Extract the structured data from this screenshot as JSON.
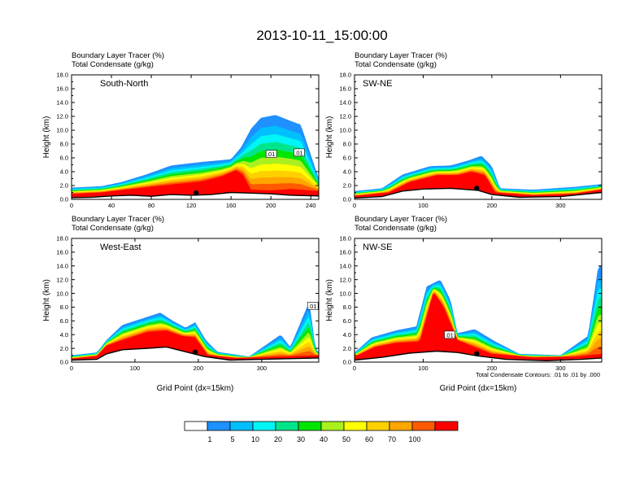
{
  "title": "2013-10-11_15:00:00",
  "panel_header": {
    "line1": "Boundary Layer Tracer   (%)",
    "line2": "Total Condensate   (g/kg)"
  },
  "ylabel": "Height (km)",
  "xlabel": "Grid Point (dx=15km)",
  "contour_note": "Total Condensate Contours: .01 to .01 by .000",
  "colorbar": {
    "labels": [
      "1",
      "5",
      "10",
      "20",
      "30",
      "40",
      "50",
      "60",
      "70",
      "100"
    ],
    "colors": [
      "#ffffff",
      "#1e90ff",
      "#00bfff",
      "#00f5f5",
      "#00e58c",
      "#00e600",
      "#aaf01e",
      "#ffff00",
      "#ffd000",
      "#ffa500",
      "#ff5a00",
      "#ff0000"
    ]
  },
  "chart_data": [
    {
      "type": "heatmap",
      "name": "South-North",
      "xticks": [
        "0",
        "40",
        "80",
        "120",
        "160",
        "200",
        "240"
      ],
      "xlim": [
        0,
        248
      ],
      "yticks": [
        "0.0",
        "2.0",
        "4.0",
        "6.0",
        "8.0",
        "10.0",
        "12.0",
        "14.0",
        "16.0",
        "18.0"
      ],
      "ylim": [
        0,
        18
      ],
      "contour_labels": [
        ".01",
        ".01"
      ],
      "marker_x": 125,
      "terrain": [
        [
          0,
          0.25
        ],
        [
          20,
          0.3
        ],
        [
          40,
          0.5
        ],
        [
          60,
          0.6
        ],
        [
          80,
          0.45
        ],
        [
          100,
          0.7
        ],
        [
          120,
          0.6
        ],
        [
          140,
          0.7
        ],
        [
          160,
          1.0
        ],
        [
          180,
          0.9
        ],
        [
          200,
          0.8
        ],
        [
          220,
          0.6
        ],
        [
          248,
          0.5
        ]
      ],
      "top_tracer_100": [
        [
          0,
          0.8
        ],
        [
          30,
          1.0
        ],
        [
          60,
          1.5
        ],
        [
          90,
          2.0
        ],
        [
          110,
          2.3
        ],
        [
          130,
          2.6
        ],
        [
          150,
          3.3
        ],
        [
          165,
          4.2
        ],
        [
          172,
          3.6
        ],
        [
          180,
          1.4
        ],
        [
          200,
          1.3
        ],
        [
          220,
          1.5
        ],
        [
          248,
          1.2
        ]
      ],
      "top_tracer_1": [
        [
          0,
          1.7
        ],
        [
          30,
          1.9
        ],
        [
          50,
          2.5
        ],
        [
          75,
          3.6
        ],
        [
          100,
          4.9
        ],
        [
          130,
          5.4
        ],
        [
          160,
          5.8
        ],
        [
          170,
          7.5
        ],
        [
          180,
          10.2
        ],
        [
          190,
          11.8
        ],
        [
          205,
          12.2
        ],
        [
          215,
          11.6
        ],
        [
          230,
          10.8
        ],
        [
          248,
          3.0
        ]
      ]
    },
    {
      "type": "heatmap",
      "name": "SW-NE",
      "xticks": [
        "0",
        "100",
        "200",
        "300"
      ],
      "xlim": [
        0,
        360
      ],
      "yticks": [
        "0.0",
        "2.0",
        "4.0",
        "6.0",
        "8.0",
        "10.0",
        "12.0",
        "14.0",
        "16.0",
        "18.0"
      ],
      "ylim": [
        0,
        18
      ],
      "marker_x": 178,
      "terrain": [
        [
          0,
          0.2
        ],
        [
          40,
          0.4
        ],
        [
          70,
          1.2
        ],
        [
          100,
          1.5
        ],
        [
          140,
          1.6
        ],
        [
          180,
          1.3
        ],
        [
          200,
          0.7
        ],
        [
          240,
          0.3
        ],
        [
          300,
          0.4
        ],
        [
          360,
          1.0
        ]
      ],
      "top_tracer_100": [
        [
          0,
          0.5
        ],
        [
          50,
          1.0
        ],
        [
          80,
          2.5
        ],
        [
          120,
          3.5
        ],
        [
          150,
          3.5
        ],
        [
          170,
          4.0
        ],
        [
          190,
          3.5
        ],
        [
          205,
          1.0
        ],
        [
          260,
          0.6
        ],
        [
          320,
          0.8
        ],
        [
          360,
          1.4
        ]
      ],
      "top_tracer_1": [
        [
          0,
          1.2
        ],
        [
          40,
          1.6
        ],
        [
          70,
          3.6
        ],
        [
          110,
          4.8
        ],
        [
          140,
          4.9
        ],
        [
          165,
          5.6
        ],
        [
          185,
          6.3
        ],
        [
          200,
          4.8
        ],
        [
          212,
          1.6
        ],
        [
          260,
          1.4
        ],
        [
          320,
          1.8
        ],
        [
          360,
          2.2
        ]
      ]
    },
    {
      "type": "heatmap",
      "name": "West-East",
      "xticks": [
        "0",
        "100",
        "200",
        "300"
      ],
      "xlim": [
        0,
        390
      ],
      "yticks": [
        "0.0",
        "2.0",
        "4.0",
        "6.0",
        "8.0",
        "10.0",
        "12.0",
        "14.0",
        "16.0",
        "18.0"
      ],
      "ylim": [
        0,
        18
      ],
      "contour_labels": [
        ".01"
      ],
      "marker_x": 195,
      "terrain": [
        [
          0,
          0.3
        ],
        [
          40,
          0.4
        ],
        [
          55,
          1.2
        ],
        [
          80,
          1.8
        ],
        [
          120,
          2.0
        ],
        [
          150,
          2.2
        ],
        [
          180,
          1.5
        ],
        [
          210,
          0.8
        ],
        [
          250,
          0.3
        ],
        [
          300,
          0.4
        ],
        [
          340,
          0.5
        ],
        [
          390,
          0.6
        ]
      ],
      "top_tracer_100": [
        [
          0,
          0.5
        ],
        [
          40,
          0.9
        ],
        [
          55,
          2.4
        ],
        [
          80,
          3.2
        ],
        [
          120,
          4.4
        ],
        [
          150,
          4.6
        ],
        [
          175,
          3.8
        ],
        [
          195,
          3.6
        ],
        [
          215,
          1.0
        ],
        [
          260,
          0.6
        ],
        [
          330,
          0.8
        ],
        [
          390,
          1.0
        ]
      ],
      "top_tracer_1": [
        [
          0,
          1.0
        ],
        [
          40,
          1.4
        ],
        [
          55,
          3.2
        ],
        [
          80,
          5.4
        ],
        [
          120,
          6.6
        ],
        [
          140,
          7.2
        ],
        [
          160,
          6.0
        ],
        [
          180,
          5.0
        ],
        [
          195,
          5.8
        ],
        [
          212,
          3.2
        ],
        [
          230,
          1.5
        ],
        [
          280,
          0.8
        ],
        [
          330,
          4.0
        ],
        [
          345,
          2.2
        ],
        [
          375,
          8.8
        ],
        [
          385,
          2.0
        ],
        [
          390,
          1.4
        ]
      ]
    },
    {
      "type": "heatmap",
      "name": "NW-SE",
      "xticks": [
        "0",
        "100",
        "200",
        "300"
      ],
      "xlim": [
        0,
        360
      ],
      "yticks": [
        "0.0",
        "2.0",
        "4.0",
        "6.0",
        "8.0",
        "10.0",
        "12.0",
        "14.0",
        "16.0",
        "18.0"
      ],
      "ylim": [
        0,
        18
      ],
      "contour_labels": [
        ".01"
      ],
      "marker_x": 178,
      "terrain": [
        [
          0,
          0.3
        ],
        [
          40,
          0.7
        ],
        [
          80,
          1.3
        ],
        [
          120,
          1.6
        ],
        [
          150,
          1.4
        ],
        [
          180,
          0.9
        ],
        [
          220,
          0.4
        ],
        [
          280,
          0.2
        ],
        [
          330,
          0.4
        ],
        [
          360,
          0.6
        ]
      ],
      "top_tracer_100": [
        [
          0,
          0.8
        ],
        [
          30,
          2.2
        ],
        [
          60,
          2.8
        ],
        [
          95,
          3.0
        ],
        [
          115,
          10.2
        ],
        [
          130,
          8.0
        ],
        [
          150,
          3.2
        ],
        [
          175,
          2.2
        ],
        [
          200,
          1.2
        ],
        [
          260,
          0.7
        ],
        [
          320,
          0.8
        ],
        [
          360,
          1.2
        ]
      ],
      "top_tracer_1": [
        [
          0,
          1.4
        ],
        [
          25,
          3.6
        ],
        [
          60,
          4.6
        ],
        [
          90,
          5.2
        ],
        [
          105,
          11.0
        ],
        [
          125,
          12.0
        ],
        [
          140,
          9.0
        ],
        [
          150,
          4.2
        ],
        [
          175,
          4.8
        ],
        [
          205,
          3.0
        ],
        [
          240,
          1.2
        ],
        [
          300,
          1.0
        ],
        [
          340,
          3.8
        ],
        [
          355,
          14.0
        ],
        [
          360,
          14.0
        ]
      ]
    }
  ]
}
